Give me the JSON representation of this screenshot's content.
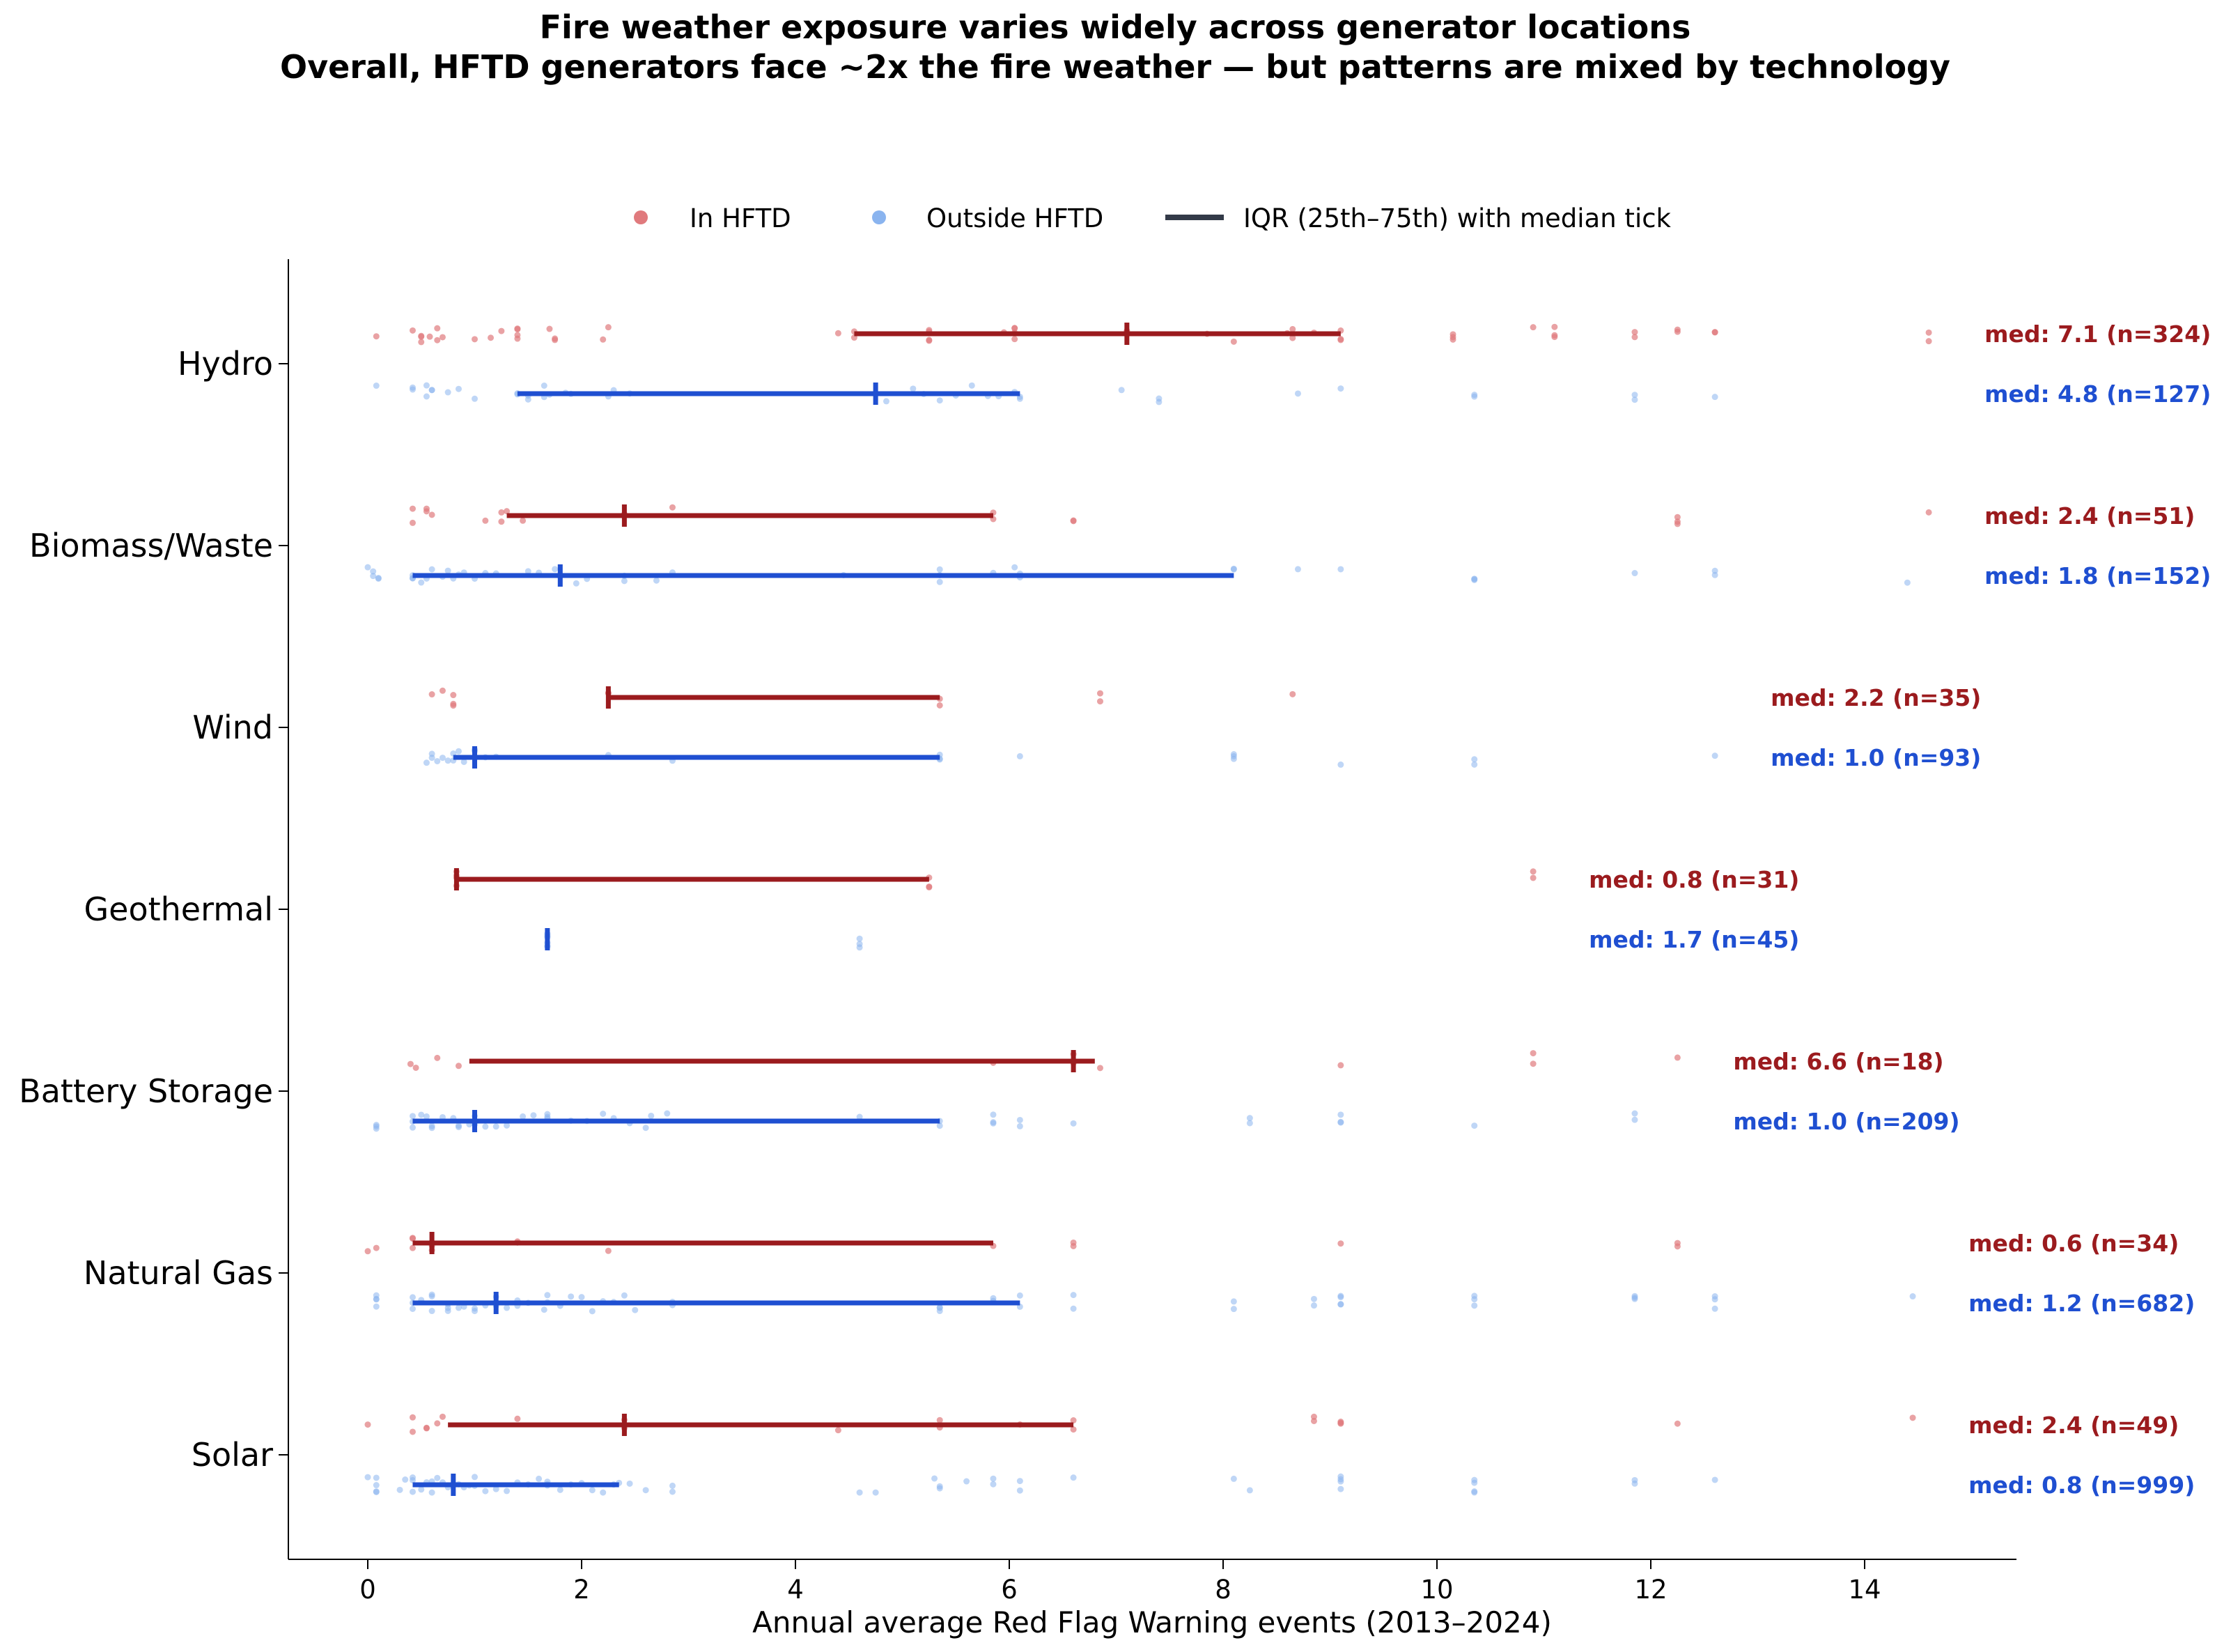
{
  "title_lines": [
    "Fire weather exposure varies widely across generator locations",
    "Overall, HFTD generators face ~2x the fire weather — but patterns are mixed by technology"
  ],
  "legend": {
    "in_hftd": "In HFTD",
    "outside_hftd": "Outside HFTD",
    "iqr": "IQR (25th–75th) with median tick"
  },
  "colors": {
    "in_points": "#e07a7d",
    "out_points": "#8ab4ef",
    "in_line": "#9b1b1e",
    "out_line": "#1f4fd1",
    "legend_iqr": "#333a48"
  },
  "chart_data": {
    "type": "scatter",
    "xlabel": "Annual average Red Flag Warning events (2013–2024)",
    "xlim": [
      -0.7,
      15.4
    ],
    "xticks": [
      0,
      2,
      4,
      6,
      8,
      10,
      12,
      14
    ],
    "tick_labels": [
      "0",
      "2",
      "4",
      "6",
      "8",
      "10",
      "12",
      "14"
    ],
    "grid": false,
    "legend_placement": "top-center",
    "categories": [
      "Hydro",
      "Biomass/Waste",
      "Wind",
      "Geothermal",
      "Battery Storage",
      "Natural Gas",
      "Solar"
    ],
    "series": [
      {
        "category": "Hydro",
        "in": {
          "q1": 4.55,
          "median": 7.1,
          "q3": 9.1,
          "n": 324,
          "label": "med: 7.1  (n=324)",
          "points": [
            0.08,
            0.42,
            0.5,
            0.5,
            0.5,
            0.58,
            0.65,
            0.65,
            0.7,
            1.0,
            1.15,
            1.25,
            1.4,
            1.4,
            1.4,
            1.4,
            1.7,
            1.75,
            1.75,
            2.2,
            2.25,
            4.4,
            4.55,
            4.55,
            5.25,
            5.25,
            5.25,
            5.25,
            5.95,
            6.05,
            6.05,
            6.05,
            6.05,
            7.1,
            7.1,
            7.85,
            8.1,
            8.6,
            8.65,
            8.65,
            8.85,
            9.1,
            9.1,
            9.1,
            10.15,
            10.15,
            10.15,
            10.9,
            11.1,
            11.1,
            11.1,
            11.85,
            11.85,
            12.25,
            12.25,
            12.6,
            12.6,
            14.6,
            14.6
          ]
        },
        "out": {
          "q1": 1.4,
          "median": 4.75,
          "q3": 6.1,
          "n": 127,
          "label": "med: 4.8  (n=127)",
          "points": [
            0.08,
            0.42,
            0.42,
            0.55,
            0.55,
            0.6,
            0.6,
            0.75,
            0.85,
            1.0,
            1.4,
            1.4,
            1.5,
            1.5,
            1.65,
            1.65,
            1.7,
            1.85,
            1.9,
            2.25,
            2.3,
            2.45,
            4.85,
            5.1,
            5.2,
            5.35,
            5.5,
            5.65,
            5.8,
            5.9,
            6.05,
            6.1,
            6.1,
            7.05,
            7.4,
            7.4,
            8.7,
            9.1,
            10.35,
            10.35,
            11.85,
            11.85,
            12.6
          ]
        }
      },
      {
        "category": "Biomass/Waste",
        "in": {
          "q1": 1.3,
          "median": 2.4,
          "q3": 5.85,
          "n": 51,
          "label": "med: 2.4  (n=51)",
          "points": [
            0.42,
            0.42,
            0.55,
            0.55,
            0.6,
            1.1,
            1.25,
            1.25,
            1.3,
            1.45,
            2.4,
            2.4,
            2.85,
            5.85,
            5.85,
            6.6,
            6.6,
            12.25,
            12.25,
            12.25,
            14.6
          ]
        },
        "out": {
          "q1": 0.42,
          "median": 1.8,
          "q3": 8.1,
          "n": 152,
          "label": "med: 1.8  (n=152)",
          "points": [
            0.0,
            0.05,
            0.05,
            0.1,
            0.1,
            0.42,
            0.42,
            0.42,
            0.5,
            0.55,
            0.6,
            0.7,
            0.75,
            0.8,
            0.85,
            0.9,
            1.0,
            1.1,
            1.2,
            1.5,
            1.6,
            1.75,
            1.8,
            1.95,
            2.05,
            2.4,
            2.4,
            2.7,
            2.85,
            4.45,
            5.35,
            5.35,
            5.35,
            5.85,
            6.05,
            6.1,
            6.1,
            8.1,
            8.1,
            8.7,
            9.1,
            10.35,
            10.35,
            10.35,
            11.85,
            12.6,
            12.6,
            14.4
          ]
        }
      },
      {
        "category": "Wind",
        "in": {
          "q1": 2.25,
          "median": 2.25,
          "q3": 5.35,
          "n": 35,
          "label": "med: 2.2  (n=35)",
          "points": [
            0.6,
            0.7,
            0.8,
            0.8,
            0.8,
            2.25,
            2.25,
            5.35,
            5.35,
            6.85,
            6.85,
            8.65
          ]
        },
        "out": {
          "q1": 0.8,
          "median": 1.0,
          "q3": 5.35,
          "n": 93,
          "label": "med: 1.0  (n=93)",
          "points": [
            0.55,
            0.6,
            0.6,
            0.65,
            0.7,
            0.75,
            0.8,
            0.8,
            0.85,
            0.9,
            1.0,
            1.0,
            1.1,
            1.2,
            2.25,
            2.85,
            5.35,
            5.35,
            5.35,
            6.1,
            8.1,
            8.1,
            8.1,
            9.1,
            10.35,
            10.35,
            12.6
          ]
        }
      },
      {
        "category": "Geothermal",
        "in": {
          "q1": 0.83,
          "median": 0.83,
          "q3": 5.25,
          "n": 31,
          "label": "med: 0.8  (n=31)",
          "points": [
            0.83,
            0.83,
            0.83,
            0.83,
            5.25,
            5.25,
            5.25,
            10.9,
            10.9
          ]
        },
        "out": {
          "q1": 1.68,
          "median": 1.68,
          "q3": 1.68,
          "n": 45,
          "label": "med: 1.7  (n=45)",
          "points": [
            1.68,
            1.68,
            1.68,
            1.68,
            1.68,
            1.68,
            4.6,
            4.6,
            4.6
          ]
        }
      },
      {
        "category": "Battery Storage",
        "in": {
          "q1": 0.95,
          "median": 6.6,
          "q3": 6.8,
          "n": 18,
          "label": "med: 6.6  (n=18)",
          "points": [
            0.4,
            0.45,
            0.65,
            0.85,
            5.85,
            6.6,
            6.6,
            6.6,
            6.85,
            9.1,
            10.9,
            10.9,
            12.25
          ]
        },
        "out": {
          "q1": 0.42,
          "median": 1.0,
          "q3": 5.35,
          "n": 209,
          "label": "med: 1.0  (n=209)",
          "points": [
            0.08,
            0.08,
            0.08,
            0.42,
            0.42,
            0.42,
            0.5,
            0.55,
            0.6,
            0.6,
            0.7,
            0.8,
            0.85,
            0.85,
            0.95,
            1.0,
            1.0,
            1.1,
            1.2,
            1.3,
            1.45,
            1.55,
            1.68,
            1.68,
            1.68,
            1.9,
            2.05,
            2.2,
            2.3,
            2.45,
            2.6,
            2.65,
            2.8,
            4.6,
            5.35,
            5.35,
            5.85,
            5.85,
            5.85,
            6.1,
            6.1,
            6.6,
            8.25,
            8.25,
            9.1,
            9.1,
            9.1,
            10.35,
            11.85,
            11.85
          ]
        }
      },
      {
        "category": "Natural Gas",
        "in": {
          "q1": 0.42,
          "median": 0.6,
          "q3": 5.85,
          "n": 34,
          "label": "med: 0.6  (n=34)",
          "points": [
            0.0,
            0.08,
            0.42,
            0.42,
            0.42,
            0.6,
            0.6,
            1.4,
            1.4,
            2.25,
            5.85,
            6.6,
            6.6,
            9.1,
            12.25,
            12.25
          ]
        },
        "out": {
          "q1": 0.42,
          "median": 1.2,
          "q3": 6.1,
          "n": 682,
          "label": "med: 1.2  (n=682)",
          "points": [
            0.08,
            0.08,
            0.08,
            0.08,
            0.42,
            0.42,
            0.42,
            0.5,
            0.6,
            0.6,
            0.6,
            0.75,
            0.75,
            0.75,
            0.85,
            0.9,
            1.0,
            1.0,
            1.1,
            1.2,
            1.2,
            1.3,
            1.4,
            1.4,
            1.5,
            1.65,
            1.68,
            1.68,
            1.8,
            1.9,
            2.0,
            2.1,
            2.2,
            2.3,
            2.4,
            2.5,
            2.85,
            2.85,
            5.35,
            5.35,
            5.35,
            5.85,
            5.85,
            6.1,
            6.1,
            6.6,
            6.6,
            8.1,
            8.1,
            8.85,
            8.85,
            9.1,
            9.1,
            9.1,
            9.1,
            10.35,
            10.35,
            10.35,
            11.85,
            11.85,
            11.85,
            12.6,
            12.6,
            12.6,
            14.45
          ]
        }
      },
      {
        "category": "Solar",
        "in": {
          "q1": 0.75,
          "median": 2.4,
          "q3": 6.6,
          "n": 49,
          "label": "med: 2.4  (n=49)",
          "points": [
            0.0,
            0.42,
            0.42,
            0.55,
            0.55,
            0.65,
            0.7,
            1.4,
            2.4,
            2.4,
            4.4,
            5.35,
            5.35,
            6.1,
            6.6,
            6.6,
            8.85,
            8.85,
            9.1,
            9.1,
            9.1,
            12.25,
            14.45
          ]
        },
        "out": {
          "q1": 0.42,
          "median": 0.8,
          "q3": 2.35,
          "n": 999,
          "label": "med: 0.8  (n=999)",
          "points": [
            0.0,
            0.08,
            0.08,
            0.08,
            0.08,
            0.3,
            0.35,
            0.42,
            0.42,
            0.42,
            0.5,
            0.55,
            0.6,
            0.6,
            0.65,
            0.7,
            0.75,
            0.8,
            0.8,
            0.85,
            0.9,
            0.95,
            1.0,
            1.0,
            1.1,
            1.2,
            1.3,
            1.4,
            1.5,
            1.6,
            1.68,
            1.68,
            1.68,
            1.8,
            1.9,
            2.0,
            2.1,
            2.2,
            2.3,
            2.35,
            2.45,
            2.6,
            2.85,
            2.85,
            4.6,
            4.75,
            5.3,
            5.35,
            5.35,
            5.6,
            5.85,
            5.85,
            6.1,
            6.1,
            6.6,
            8.1,
            8.25,
            9.1,
            9.1,
            9.1,
            9.1,
            10.35,
            10.35,
            10.35,
            10.35,
            11.85,
            11.85,
            12.6
          ]
        }
      }
    ]
  }
}
